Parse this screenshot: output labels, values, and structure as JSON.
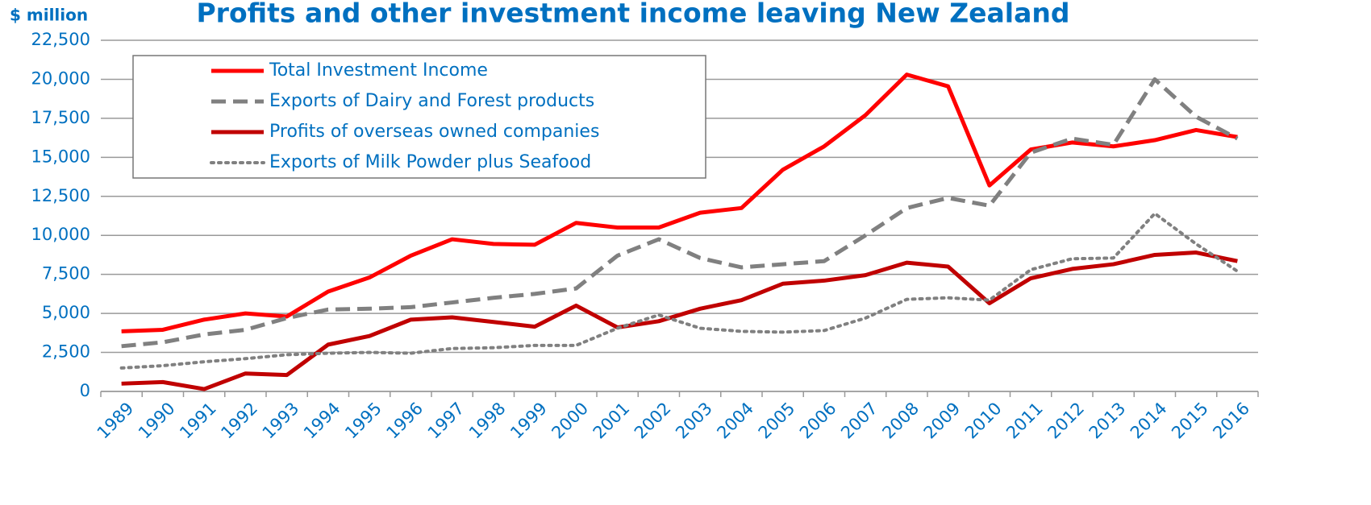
{
  "chart_data": {
    "type": "line",
    "title": "Profits and other investment income leaving New Zealand",
    "y_label": "$ million",
    "categories": [
      "1989",
      "1990",
      "1991",
      "1992",
      "1993",
      "1994",
      "1995",
      "1996",
      "1997",
      "1998",
      "1999",
      "2000",
      "2001",
      "2002",
      "2003",
      "2004",
      "2005",
      "2006",
      "2007",
      "2008",
      "2009",
      "2010",
      "2011",
      "2012",
      "2013",
      "2014",
      "2015",
      "2016"
    ],
    "series": [
      {
        "name": "Total Investment Income",
        "color": "#ff0000",
        "dash": "solid",
        "values": [
          3850,
          3950,
          4600,
          5000,
          4800,
          6400,
          7300,
          8700,
          9750,
          9450,
          9400,
          10800,
          10500,
          10500,
          11450,
          11750,
          14200,
          15700,
          17700,
          20300,
          19550,
          13200,
          15500,
          15950,
          15700,
          16100,
          16750,
          16300
        ]
      },
      {
        "name": "Exports of Dairy and Forest products",
        "color": "#808080",
        "dash": "dashed",
        "values": [
          2900,
          3150,
          3650,
          3950,
          4700,
          5250,
          5300,
          5400,
          5700,
          6000,
          6250,
          6600,
          8700,
          9750,
          8550,
          7950,
          8150,
          8350,
          10000,
          11750,
          12400,
          11900,
          15300,
          16200,
          15800,
          20000,
          17600,
          16200
        ]
      },
      {
        "name": "Profits of overseas owned companies",
        "color": "#c00000",
        "dash": "solid",
        "values": [
          500,
          600,
          150,
          1150,
          1050,
          3000,
          3550,
          4600,
          4750,
          4450,
          4150,
          5500,
          4100,
          4500,
          5300,
          5850,
          6900,
          7100,
          7450,
          8250,
          8000,
          5650,
          7250,
          7850,
          8150,
          8750,
          8900,
          8350
        ]
      },
      {
        "name": "Exports of Milk Powder plus Seafood",
        "color": "#808080",
        "dash": "dotted",
        "values": [
          1500,
          1650,
          1900,
          2100,
          2350,
          2450,
          2500,
          2450,
          2750,
          2800,
          2950,
          2950,
          4050,
          4900,
          4050,
          3850,
          3800,
          3900,
          4700,
          5900,
          6000,
          5850,
          7800,
          8500,
          8550,
          11400,
          9450,
          7700
        ]
      }
    ],
    "ylim": [
      0,
      22500
    ],
    "yticks": [
      0,
      {
        "value": 2500,
        "label": "2,500"
      },
      {
        "value": 5000,
        "label": "5,000"
      },
      {
        "value": 7500,
        "label": "7,500"
      },
      {
        "value": 10000,
        "label": "10,000"
      },
      {
        "value": 12500,
        "label": "12,500"
      },
      {
        "value": 15000,
        "label": "15,000"
      },
      {
        "value": 17500,
        "label": "17,500"
      },
      {
        "value": 20000,
        "label": "20,000"
      },
      {
        "value": 22500,
        "label": "22,500"
      }
    ],
    "grid": true,
    "legend": "upper left"
  }
}
